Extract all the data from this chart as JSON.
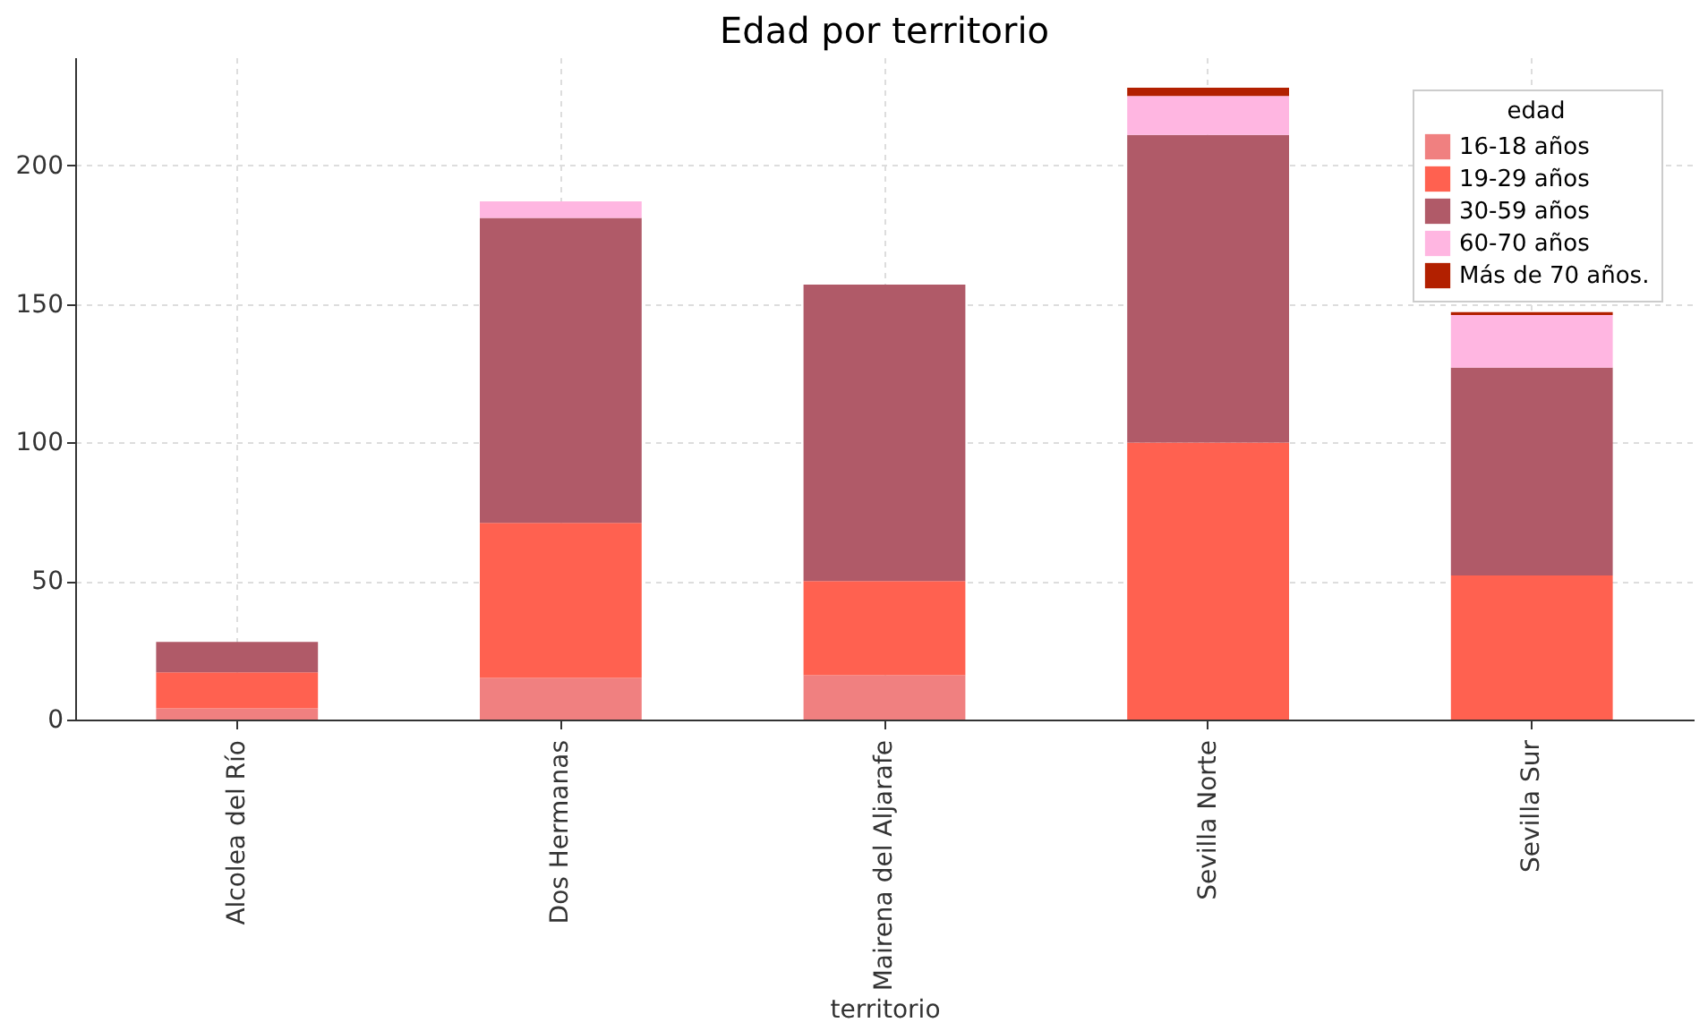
{
  "chart_data": {
    "type": "bar",
    "title": "Edad por territorio",
    "xlabel": "territorio",
    "legend_title": "edad",
    "categories": [
      "Alcolea del Río",
      "Dos Hermanas",
      "Mairena del Aljarafe",
      "Sevilla Norte",
      "Sevilla Sur"
    ],
    "stacked": true,
    "ylim": [
      0,
      239
    ],
    "yticks": [
      0,
      50,
      100,
      150,
      200
    ],
    "grid": true,
    "legend": "top right",
    "series": [
      {
        "name": "16-18 años",
        "color": "#f08080",
        "values": [
          4,
          15,
          16,
          0,
          0
        ]
      },
      {
        "name": "19-29 años",
        "color": "#ff6150",
        "values": [
          13,
          56,
          34,
          100,
          52
        ]
      },
      {
        "name": "30-59 años",
        "color": "#b05a68",
        "values": [
          11,
          110,
          107,
          111,
          75
        ]
      },
      {
        "name": "60-70 años",
        "color": "#ffb6e1",
        "values": [
          0,
          6,
          0,
          14,
          19
        ]
      },
      {
        "name": "Más de 70 años.",
        "color": "#b22000",
        "values": [
          0,
          0,
          0,
          3,
          1
        ]
      }
    ]
  }
}
